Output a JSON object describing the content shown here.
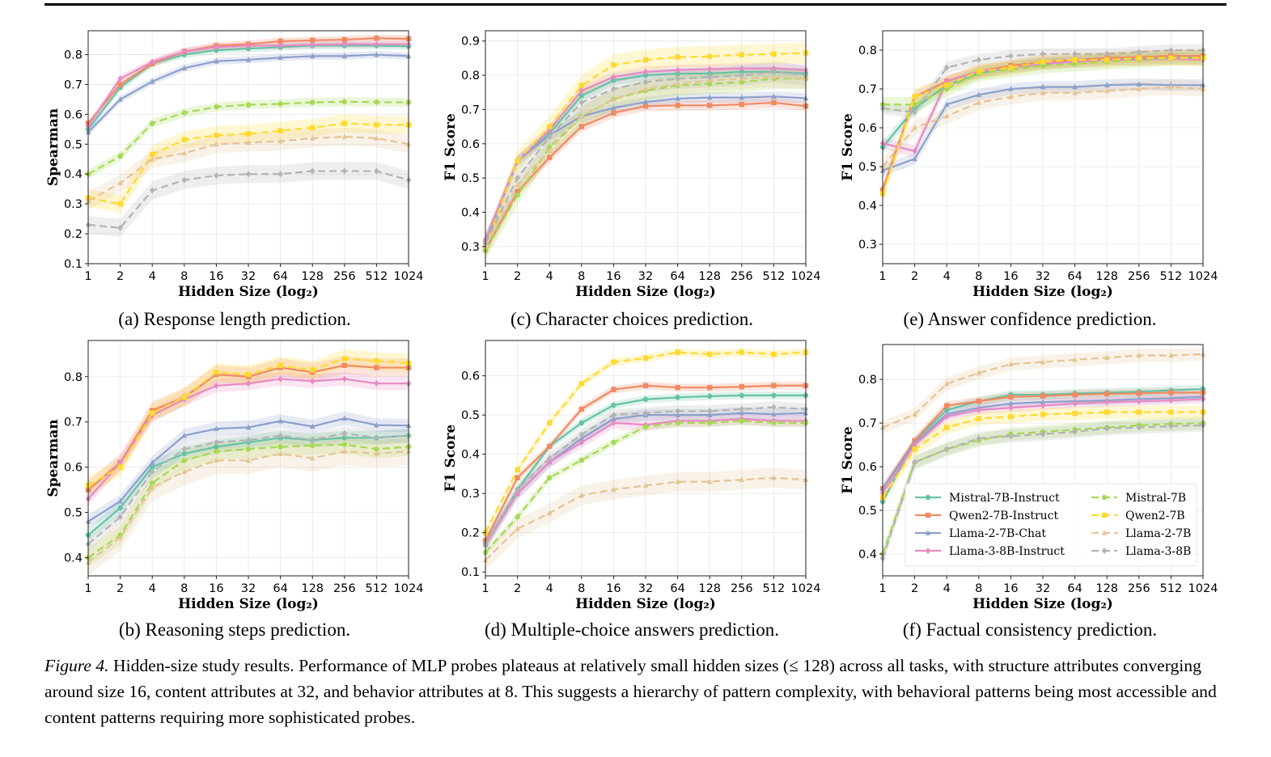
{
  "figure": {
    "caption_label": "Figure 4.",
    "caption_text": " Hidden-size study results. Performance of MLP probes plateaus at relatively small hidden sizes (≤ 128) across all tasks, with structure attributes converging around size 16, content attributes at 32, and behavior attributes at 8. This suggests a hierarchy of pattern complexity, with behavioral patterns being most accessible and content patterns requiring more sophisticated probes."
  },
  "series_styles": [
    {
      "name": "Mistral-7B-Instruct",
      "color": "#66c2a5",
      "dash": "solid",
      "marker": "circle"
    },
    {
      "name": "Qwen2-7B-Instruct",
      "color": "#f08a62",
      "dash": "solid",
      "marker": "square"
    },
    {
      "name": "Llama-2-7B-Chat",
      "color": "#8da0cb",
      "dash": "solid",
      "marker": "triangle"
    },
    {
      "name": "Llama-3-8B-Instruct",
      "color": "#e78ac3",
      "dash": "solid",
      "marker": "diamond"
    },
    {
      "name": "Mistral-7B",
      "color": "#a6d854",
      "dash": "dashed",
      "marker": "circle"
    },
    {
      "name": "Qwen2-7B",
      "color": "#ffd92f",
      "dash": "dashed",
      "marker": "square"
    },
    {
      "name": "Llama-2-7B",
      "color": "#e5c494",
      "dash": "dashed",
      "marker": "triangle"
    },
    {
      "name": "Llama-3-8B",
      "color": "#b3b3b3",
      "dash": "dashed",
      "marker": "diamond"
    }
  ],
  "chart_data": [
    {
      "type": "line",
      "caption": "(a) Response length prediction.",
      "xlabel": "Hidden Size (log₂)",
      "ylabel": "Spearman",
      "x": [
        "1",
        "2",
        "4",
        "8",
        "16",
        "32",
        "64",
        "128",
        "256",
        "512",
        "1024"
      ],
      "ylim": [
        0.1,
        0.88
      ],
      "yticks": [
        0.1,
        0.2,
        0.3,
        0.4,
        0.5,
        0.6,
        0.7,
        0.8
      ],
      "grid": true,
      "series": [
        {
          "name": "Mistral-7B-Instruct",
          "values": [
            0.55,
            0.69,
            0.77,
            0.8,
            0.815,
            0.82,
            0.825,
            0.83,
            0.83,
            0.83,
            0.828
          ],
          "band": 0.012
        },
        {
          "name": "Qwen2-7B-Instruct",
          "values": [
            0.57,
            0.7,
            0.77,
            0.81,
            0.83,
            0.835,
            0.845,
            0.848,
            0.85,
            0.855,
            0.853
          ],
          "band": 0.012
        },
        {
          "name": "Llama-2-7B-Chat",
          "values": [
            0.54,
            0.65,
            0.71,
            0.755,
            0.778,
            0.783,
            0.79,
            0.795,
            0.795,
            0.8,
            0.795
          ],
          "band": 0.012
        },
        {
          "name": "Llama-3-8B-Instruct",
          "values": [
            0.56,
            0.72,
            0.775,
            0.81,
            0.825,
            0.83,
            0.83,
            0.833,
            0.835,
            0.835,
            0.835
          ],
          "band": 0.012
        },
        {
          "name": "Mistral-7B",
          "values": [
            0.4,
            0.46,
            0.57,
            0.605,
            0.625,
            0.632,
            0.635,
            0.64,
            0.642,
            0.641,
            0.64
          ],
          "band": 0.015
        },
        {
          "name": "Qwen2-7B",
          "values": [
            0.32,
            0.3,
            0.465,
            0.515,
            0.53,
            0.535,
            0.545,
            0.555,
            0.57,
            0.565,
            0.565
          ],
          "band": 0.03
        },
        {
          "name": "Llama-2-7B",
          "values": [
            0.31,
            0.37,
            0.45,
            0.47,
            0.5,
            0.505,
            0.51,
            0.52,
            0.525,
            0.52,
            0.5
          ],
          "band": 0.03
        },
        {
          "name": "Llama-3-8B",
          "values": [
            0.23,
            0.22,
            0.345,
            0.38,
            0.395,
            0.4,
            0.4,
            0.41,
            0.41,
            0.41,
            0.38
          ],
          "band": 0.03
        }
      ]
    },
    {
      "type": "line",
      "caption": "(c) Character choices prediction.",
      "xlabel": "Hidden Size (log₂)",
      "ylabel": "F1 Score",
      "x": [
        "1",
        "2",
        "4",
        "8",
        "16",
        "32",
        "64",
        "128",
        "256",
        "512",
        "1024"
      ],
      "ylim": [
        0.25,
        0.93
      ],
      "yticks": [
        0.3,
        0.4,
        0.5,
        0.6,
        0.7,
        0.8,
        0.9
      ],
      "grid": true,
      "series": [
        {
          "name": "Mistral-7B-Instruct",
          "values": [
            0.31,
            0.55,
            0.63,
            0.74,
            0.785,
            0.8,
            0.805,
            0.805,
            0.81,
            0.81,
            0.805
          ],
          "band": 0.015
        },
        {
          "name": "Qwen2-7B-Instruct",
          "values": [
            0.29,
            0.46,
            0.56,
            0.65,
            0.69,
            0.71,
            0.712,
            0.712,
            0.715,
            0.72,
            0.71
          ],
          "band": 0.015
        },
        {
          "name": "Llama-2-7B-Chat",
          "values": [
            0.32,
            0.55,
            0.625,
            0.68,
            0.705,
            0.722,
            0.732,
            0.735,
            0.735,
            0.738,
            0.733
          ],
          "band": 0.015
        },
        {
          "name": "Llama-3-8B-Instruct",
          "values": [
            0.32,
            0.55,
            0.64,
            0.755,
            0.795,
            0.81,
            0.815,
            0.818,
            0.82,
            0.82,
            0.815
          ],
          "band": 0.015
        },
        {
          "name": "Mistral-7B",
          "values": [
            0.29,
            0.45,
            0.59,
            0.68,
            0.73,
            0.755,
            0.77,
            0.775,
            0.78,
            0.79,
            0.79
          ],
          "band": 0.03
        },
        {
          "name": "Qwen2-7B",
          "values": [
            0.3,
            0.55,
            0.65,
            0.77,
            0.83,
            0.845,
            0.853,
            0.855,
            0.86,
            0.862,
            0.865
          ],
          "band": 0.03
        },
        {
          "name": "Llama-2-7B",
          "values": [
            0.3,
            0.48,
            0.58,
            0.68,
            0.73,
            0.76,
            0.775,
            0.785,
            0.79,
            0.795,
            0.79
          ],
          "band": 0.03
        },
        {
          "name": "Llama-3-8B",
          "values": [
            0.31,
            0.5,
            0.62,
            0.72,
            0.76,
            0.78,
            0.79,
            0.795,
            0.8,
            0.81,
            0.8
          ],
          "band": 0.03
        }
      ]
    },
    {
      "type": "line",
      "caption": "(e) Answer confidence prediction.",
      "xlabel": "Hidden Size (log₂)",
      "ylabel": "F1 Score",
      "x": [
        "1",
        "2",
        "4",
        "8",
        "16",
        "32",
        "64",
        "128",
        "256",
        "512",
        "1024"
      ],
      "ylim": [
        0.25,
        0.85
      ],
      "yticks": [
        0.3,
        0.4,
        0.5,
        0.6,
        0.7,
        0.8
      ],
      "grid": true,
      "series": [
        {
          "name": "Mistral-7B-Instruct",
          "values": [
            0.55,
            0.65,
            0.71,
            0.74,
            0.755,
            0.765,
            0.77,
            0.775,
            0.778,
            0.78,
            0.78
          ],
          "band": 0.015
        },
        {
          "name": "Qwen2-7B-Instruct",
          "values": [
            0.44,
            0.68,
            0.72,
            0.745,
            0.76,
            0.77,
            0.775,
            0.78,
            0.782,
            0.785,
            0.785
          ],
          "band": 0.015
        },
        {
          "name": "Llama-2-7B-Chat",
          "values": [
            0.49,
            0.52,
            0.66,
            0.685,
            0.7,
            0.705,
            0.705,
            0.71,
            0.712,
            0.71,
            0.71
          ],
          "band": 0.015
        },
        {
          "name": "Llama-3-8B-Instruct",
          "values": [
            0.56,
            0.54,
            0.72,
            0.745,
            0.755,
            0.765,
            0.77,
            0.775,
            0.775,
            0.778,
            0.775
          ],
          "band": 0.015
        },
        {
          "name": "Mistral-7B",
          "values": [
            0.66,
            0.66,
            0.7,
            0.74,
            0.75,
            0.76,
            0.765,
            0.77,
            0.775,
            0.78,
            0.78
          ],
          "band": 0.02
        },
        {
          "name": "Qwen2-7B",
          "values": [
            0.43,
            0.68,
            0.71,
            0.745,
            0.755,
            0.77,
            0.775,
            0.775,
            0.78,
            0.78,
            0.78
          ],
          "band": 0.02
        },
        {
          "name": "Llama-2-7B",
          "values": [
            0.5,
            0.6,
            0.63,
            0.665,
            0.68,
            0.69,
            0.69,
            0.695,
            0.7,
            0.705,
            0.7
          ],
          "band": 0.02
        },
        {
          "name": "Llama-3-8B",
          "values": [
            0.65,
            0.64,
            0.755,
            0.775,
            0.785,
            0.79,
            0.79,
            0.79,
            0.795,
            0.8,
            0.8
          ],
          "band": 0.015
        }
      ]
    },
    {
      "type": "line",
      "caption": "(b) Reasoning steps prediction.",
      "xlabel": "Hidden Size (log₂)",
      "ylabel": "Spearman",
      "x": [
        "1",
        "2",
        "4",
        "8",
        "16",
        "32",
        "64",
        "128",
        "256",
        "512",
        "1024"
      ],
      "ylim": [
        0.36,
        0.88
      ],
      "yticks": [
        0.4,
        0.5,
        0.6,
        0.7,
        0.8
      ],
      "grid": true,
      "series": [
        {
          "name": "Mistral-7B-Instruct",
          "values": [
            0.45,
            0.51,
            0.6,
            0.63,
            0.645,
            0.655,
            0.665,
            0.66,
            0.665,
            0.665,
            0.67
          ],
          "band": 0.015
        },
        {
          "name": "Qwen2-7B-Instruct",
          "values": [
            0.55,
            0.61,
            0.725,
            0.755,
            0.805,
            0.8,
            0.82,
            0.81,
            0.825,
            0.82,
            0.82
          ],
          "band": 0.02
        },
        {
          "name": "Llama-2-7B-Chat",
          "values": [
            0.48,
            0.525,
            0.61,
            0.67,
            0.685,
            0.688,
            0.702,
            0.69,
            0.708,
            0.693,
            0.692
          ],
          "band": 0.015
        },
        {
          "name": "Llama-3-8B-Instruct",
          "values": [
            0.53,
            0.61,
            0.715,
            0.75,
            0.78,
            0.785,
            0.795,
            0.79,
            0.795,
            0.785,
            0.785
          ],
          "band": 0.015
        },
        {
          "name": "Mistral-7B",
          "values": [
            0.4,
            0.45,
            0.565,
            0.615,
            0.635,
            0.64,
            0.645,
            0.648,
            0.65,
            0.64,
            0.645
          ],
          "band": 0.02
        },
        {
          "name": "Qwen2-7B",
          "values": [
            0.56,
            0.6,
            0.72,
            0.755,
            0.81,
            0.805,
            0.825,
            0.815,
            0.84,
            0.835,
            0.83
          ],
          "band": 0.02
        },
        {
          "name": "Llama-2-7B",
          "values": [
            0.39,
            0.445,
            0.555,
            0.59,
            0.615,
            0.615,
            0.63,
            0.62,
            0.635,
            0.63,
            0.635
          ],
          "band": 0.03
        },
        {
          "name": "Llama-3-8B",
          "values": [
            0.43,
            0.49,
            0.59,
            0.64,
            0.655,
            0.66,
            0.67,
            0.66,
            0.675,
            0.665,
            0.67
          ],
          "band": 0.015
        }
      ]
    },
    {
      "type": "line",
      "caption": "(d) Multiple-choice answers prediction.",
      "xlabel": "Hidden Size (log₂)",
      "ylabel": "F1 Score",
      "x": [
        "1",
        "2",
        "4",
        "8",
        "16",
        "32",
        "64",
        "128",
        "256",
        "512",
        "1024"
      ],
      "ylim": [
        0.09,
        0.69
      ],
      "yticks": [
        0.1,
        0.2,
        0.3,
        0.4,
        0.5,
        0.6
      ],
      "grid": true,
      "series": [
        {
          "name": "Mistral-7B-Instruct",
          "values": [
            0.17,
            0.31,
            0.42,
            0.48,
            0.525,
            0.54,
            0.545,
            0.548,
            0.55,
            0.55,
            0.55
          ],
          "band": 0.01
        },
        {
          "name": "Qwen2-7B-Instruct",
          "values": [
            0.18,
            0.34,
            0.42,
            0.515,
            0.565,
            0.575,
            0.57,
            0.57,
            0.572,
            0.575,
            0.575
          ],
          "band": 0.01
        },
        {
          "name": "Llama-2-7B-Chat",
          "values": [
            0.17,
            0.3,
            0.38,
            0.44,
            0.49,
            0.5,
            0.5,
            0.5,
            0.505,
            0.502,
            0.505
          ],
          "band": 0.015
        },
        {
          "name": "Llama-3-8B-Instruct",
          "values": [
            0.17,
            0.3,
            0.38,
            0.43,
            0.48,
            0.475,
            0.485,
            0.485,
            0.49,
            0.485,
            0.485
          ],
          "band": 0.015
        },
        {
          "name": "Mistral-7B",
          "values": [
            0.15,
            0.24,
            0.34,
            0.385,
            0.43,
            0.47,
            0.48,
            0.48,
            0.485,
            0.48,
            0.48
          ],
          "band": 0.01
        },
        {
          "name": "Qwen2-7B",
          "values": [
            0.2,
            0.36,
            0.48,
            0.58,
            0.635,
            0.645,
            0.66,
            0.655,
            0.66,
            0.655,
            0.66
          ],
          "band": 0.01
        },
        {
          "name": "Llama-2-7B",
          "values": [
            0.13,
            0.21,
            0.25,
            0.295,
            0.31,
            0.32,
            0.33,
            0.33,
            0.335,
            0.34,
            0.335
          ],
          "band": 0.025
        },
        {
          "name": "Llama-3-8B",
          "values": [
            0.17,
            0.31,
            0.39,
            0.45,
            0.5,
            0.505,
            0.51,
            0.51,
            0.515,
            0.52,
            0.515
          ],
          "band": 0.015
        }
      ]
    },
    {
      "type": "line",
      "caption": "(f) Factual consistency prediction.",
      "xlabel": "Hidden Size (log₂)",
      "ylabel": "F1 Score",
      "x": [
        "1",
        "2",
        "4",
        "8",
        "16",
        "32",
        "64",
        "128",
        "256",
        "512",
        "1024"
      ],
      "ylim": [
        0.35,
        0.88
      ],
      "yticks": [
        0.4,
        0.5,
        0.6,
        0.7,
        0.8
      ],
      "grid": true,
      "legend": {
        "position": "lower-right",
        "columns": 2
      },
      "series": [
        {
          "name": "Mistral-7B-Instruct",
          "values": [
            0.52,
            0.66,
            0.73,
            0.75,
            0.765,
            0.765,
            0.768,
            0.77,
            0.772,
            0.775,
            0.778
          ],
          "band": 0.01
        },
        {
          "name": "Qwen2-7B-Instruct",
          "values": [
            0.55,
            0.66,
            0.74,
            0.75,
            0.76,
            0.762,
            0.765,
            0.767,
            0.768,
            0.77,
            0.77
          ],
          "band": 0.01
        },
        {
          "name": "Llama-2-7B-Chat",
          "values": [
            0.55,
            0.655,
            0.72,
            0.735,
            0.745,
            0.748,
            0.75,
            0.752,
            0.755,
            0.757,
            0.76
          ],
          "band": 0.01
        },
        {
          "name": "Llama-3-8B-Instruct",
          "values": [
            0.54,
            0.65,
            0.715,
            0.73,
            0.735,
            0.74,
            0.745,
            0.748,
            0.75,
            0.752,
            0.755
          ],
          "band": 0.01
        },
        {
          "name": "Mistral-7B",
          "values": [
            0.4,
            0.61,
            0.64,
            0.66,
            0.675,
            0.68,
            0.685,
            0.69,
            0.695,
            0.698,
            0.7
          ],
          "band": 0.015
        },
        {
          "name": "Qwen2-7B",
          "values": [
            0.53,
            0.64,
            0.69,
            0.71,
            0.715,
            0.72,
            0.722,
            0.725,
            0.725,
            0.725,
            0.725
          ],
          "band": 0.015
        },
        {
          "name": "Llama-2-7B",
          "values": [
            0.69,
            0.72,
            0.79,
            0.815,
            0.835,
            0.84,
            0.845,
            0.85,
            0.855,
            0.855,
            0.858
          ],
          "band": 0.015
        },
        {
          "name": "Llama-3-8B",
          "values": [
            0.39,
            0.61,
            0.64,
            0.665,
            0.67,
            0.675,
            0.68,
            0.688,
            0.69,
            0.693,
            0.695
          ],
          "band": 0.015
        }
      ]
    }
  ]
}
